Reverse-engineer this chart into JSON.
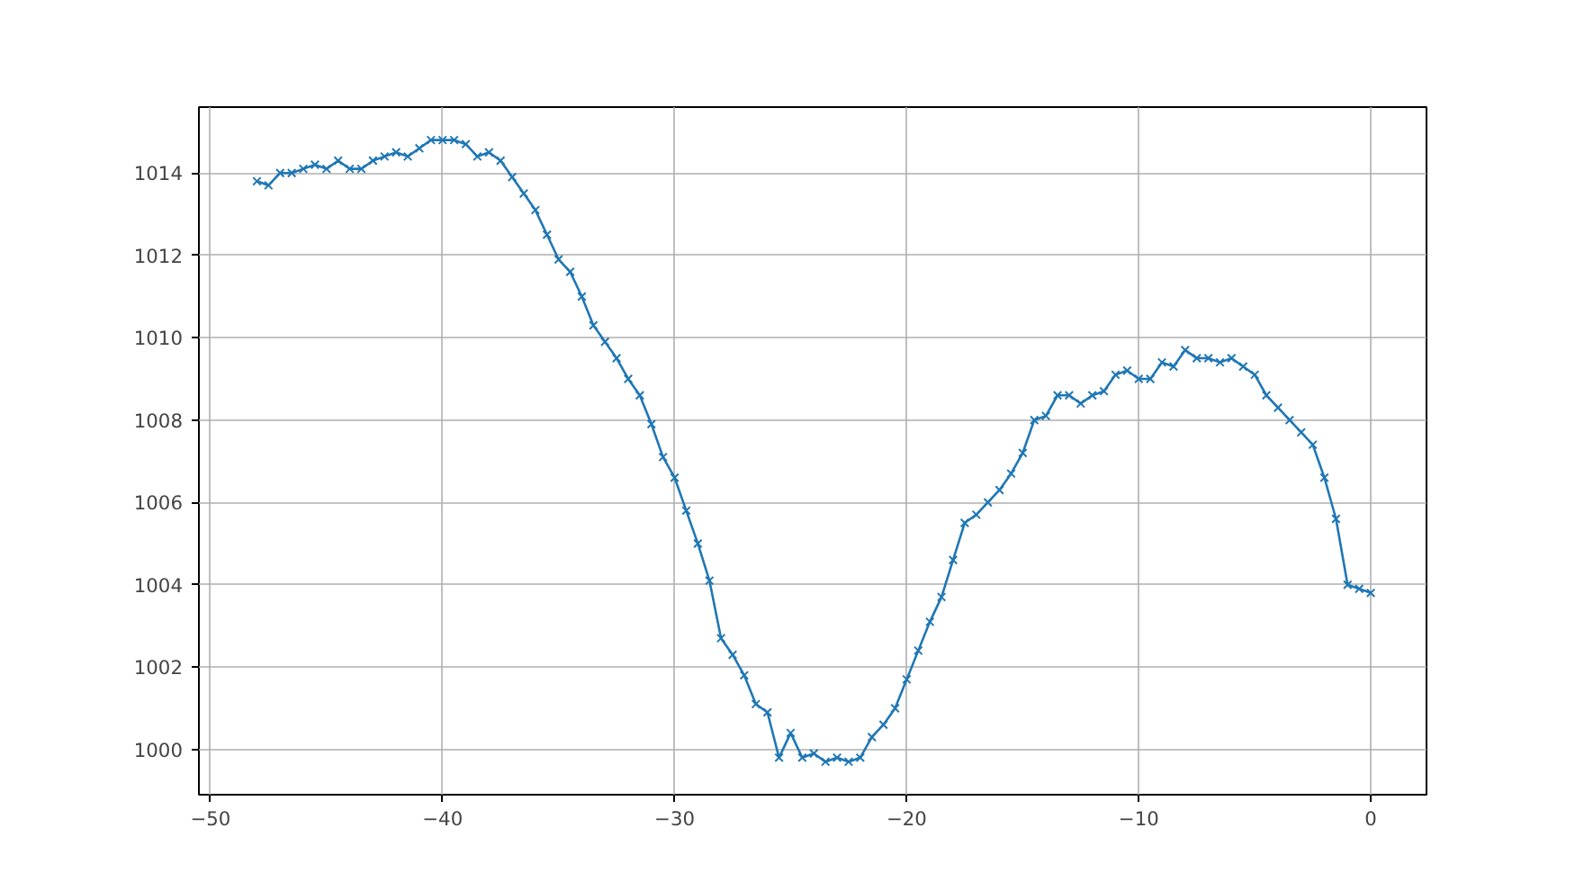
{
  "chart_data": {
    "type": "line",
    "marker": "cross",
    "grid": true,
    "line_style": "solid",
    "xlim": [
      -50.5,
      2.4
    ],
    "ylim": [
      998.9,
      1015.6
    ],
    "xticks": [
      -50,
      -40,
      -30,
      -20,
      -10,
      0
    ],
    "yticks": [
      1000,
      1002,
      1004,
      1006,
      1008,
      1010,
      1012,
      1014
    ],
    "x": [
      -48,
      -47.5,
      -47,
      -46.5,
      -46,
      -45.5,
      -45,
      -44.5,
      -44,
      -43.5,
      -43,
      -42.5,
      -42,
      -41.5,
      -41,
      -40.5,
      -40,
      -39.5,
      -39,
      -38.5,
      -38,
      -37.5,
      -37,
      -36.5,
      -36,
      -35.5,
      -35,
      -34.5,
      -34,
      -33.5,
      -33,
      -32.5,
      -32,
      -31.5,
      -31,
      -30.5,
      -30,
      -29.5,
      -29,
      -28.5,
      -28,
      -27.5,
      -27,
      -26.5,
      -26,
      -25.5,
      -25,
      -24.5,
      -24,
      -23.5,
      -23,
      -22.5,
      -22,
      -21.5,
      -21,
      -20.5,
      -20,
      -19.5,
      -19,
      -18.5,
      -18,
      -17.5,
      -17,
      -16.5,
      -16,
      -15.5,
      -15,
      -14.5,
      -14,
      -13.5,
      -13,
      -12.5,
      -12,
      -11.5,
      -11,
      -10.5,
      -10,
      -9.5,
      -9,
      -8.5,
      -8,
      -7.5,
      -7,
      -6.5,
      -6,
      -5.5,
      -5,
      -4.5,
      -4,
      -3.5,
      -3,
      -2.5,
      -2,
      -1.5,
      -1,
      -0.5,
      0
    ],
    "series": [
      {
        "color": "#1f77b4",
        "values": [
          1013.8,
          1013.7,
          1014.0,
          1014.0,
          1014.1,
          1014.2,
          1014.1,
          1014.3,
          1014.1,
          1014.1,
          1014.3,
          1014.4,
          1014.5,
          1014.4,
          1014.6,
          1014.8,
          1014.8,
          1014.8,
          1014.7,
          1014.4,
          1014.5,
          1014.3,
          1013.9,
          1013.5,
          1013.1,
          1012.5,
          1011.9,
          1011.6,
          1011.0,
          1010.3,
          1009.9,
          1009.5,
          1009.0,
          1008.6,
          1007.9,
          1007.1,
          1006.6,
          1005.8,
          1005.0,
          1004.1,
          1002.7,
          1002.3,
          1001.8,
          1001.1,
          1000.9,
          999.8,
          1000.4,
          999.8,
          999.9,
          999.7,
          999.8,
          999.7,
          999.8,
          1000.3,
          1000.6,
          1001.0,
          1001.7,
          1002.4,
          1003.1,
          1003.7,
          1004.6,
          1005.5,
          1005.7,
          1006.0,
          1006.3,
          1006.7,
          1007.2,
          1008.0,
          1008.1,
          1008.6,
          1008.6,
          1008.4,
          1008.6,
          1008.7,
          1009.1,
          1009.2,
          1009.0,
          1009.0,
          1009.4,
          1009.3,
          1009.7,
          1009.5,
          1009.5,
          1009.4,
          1009.5,
          1009.3,
          1009.1,
          1008.6,
          1008.3,
          1008.0,
          1007.7,
          1007.4,
          1006.6,
          1005.6,
          1004.0,
          1003.9,
          1003.8
        ]
      }
    ]
  }
}
